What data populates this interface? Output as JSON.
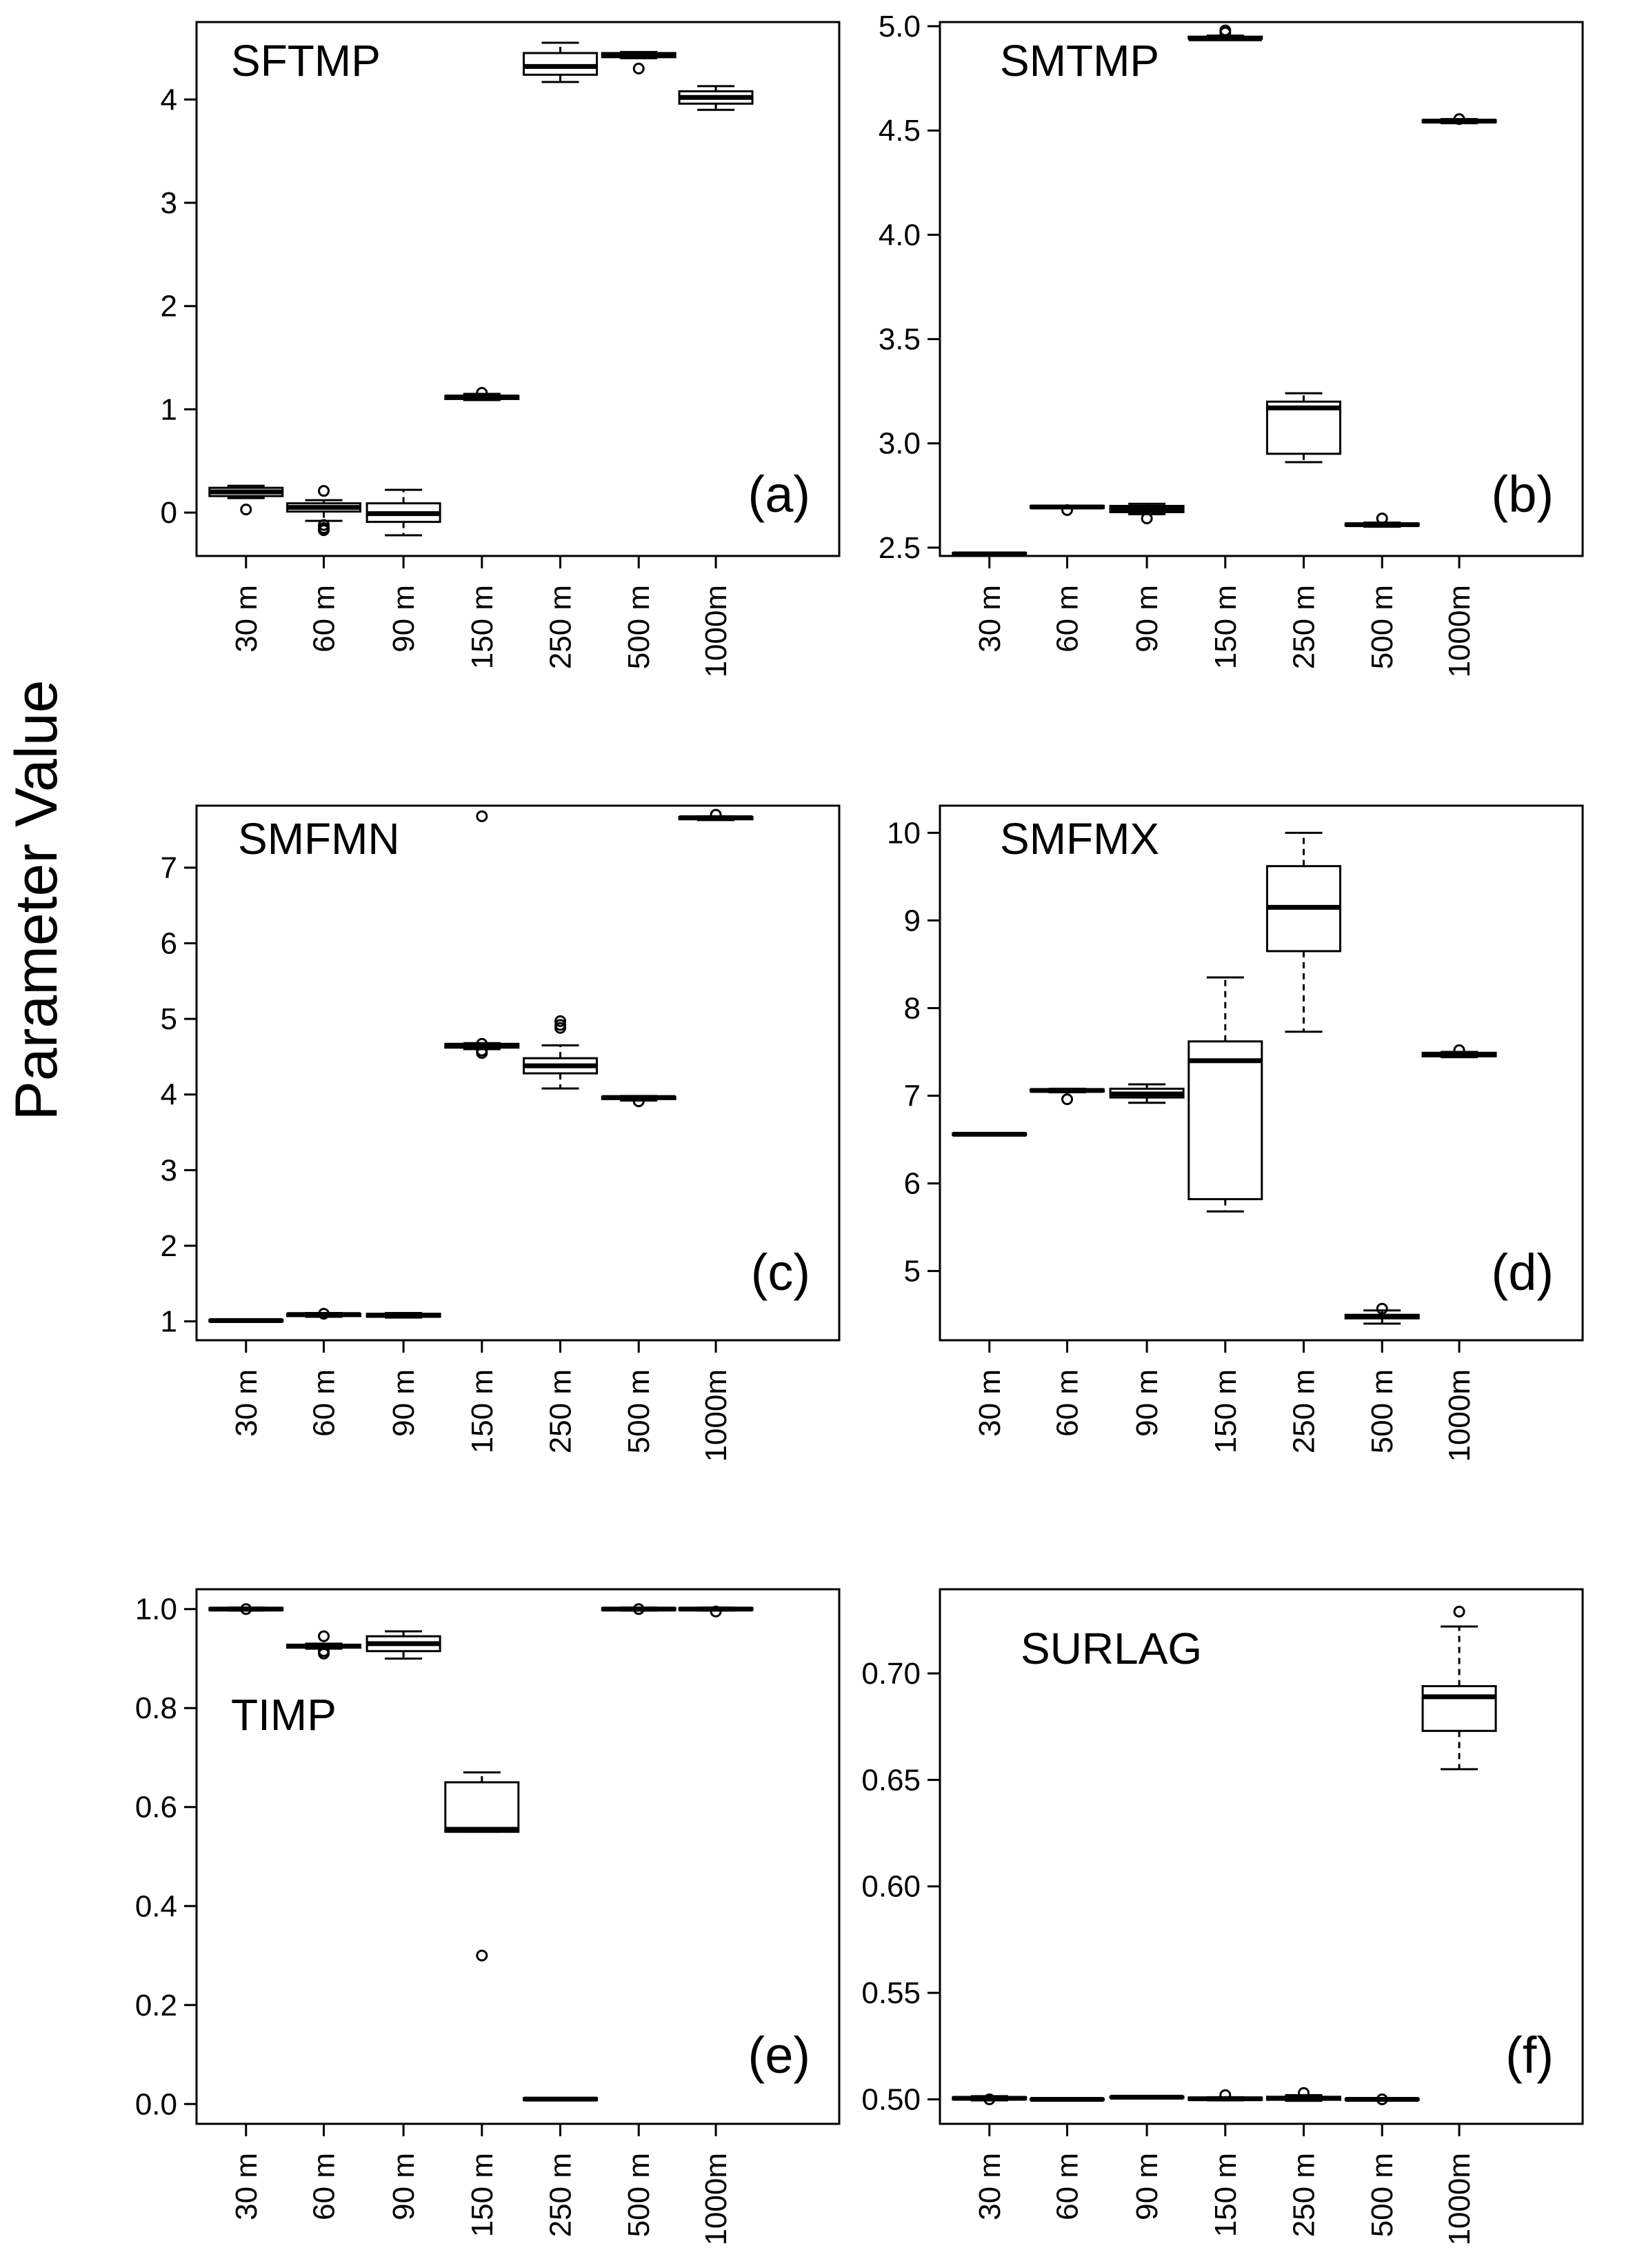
{
  "figure": {
    "ylabel": "Parameter Value"
  },
  "chart_data": [
    {
      "id": "a",
      "type": "box",
      "title": "SFTMP",
      "panel_label": "(a)",
      "categories": [
        "30 m",
        "60 m",
        "90 m",
        "150 m",
        "250 m",
        "500 m",
        "1000m"
      ],
      "ylim": [
        -0.42,
        4.75
      ],
      "yticks": [
        0,
        1,
        2,
        3,
        4
      ],
      "boxes": [
        {
          "q1": 0.16,
          "median": 0.2,
          "q3": 0.24,
          "lo": 0.14,
          "hi": 0.26,
          "outliers": [
            0.03
          ]
        },
        {
          "q1": 0.01,
          "median": 0.05,
          "q3": 0.09,
          "lo": -0.08,
          "hi": 0.12,
          "outliers": [
            0.21,
            -0.12,
            -0.15,
            -0.17
          ]
        },
        {
          "q1": -0.09,
          "median": -0.01,
          "q3": 0.09,
          "lo": -0.22,
          "hi": 0.22,
          "outliers": []
        },
        {
          "q1": 1.1,
          "median": 1.12,
          "q3": 1.13,
          "lo": 1.09,
          "hi": 1.15,
          "outliers": [
            1.16
          ]
        },
        {
          "q1": 4.24,
          "median": 4.32,
          "q3": 4.45,
          "lo": 4.17,
          "hi": 4.55,
          "outliers": []
        },
        {
          "q1": 4.41,
          "median": 4.43,
          "q3": 4.45,
          "lo": 4.4,
          "hi": 4.46,
          "outliers": [
            4.3
          ]
        },
        {
          "q1": 3.96,
          "median": 4.02,
          "q3": 4.08,
          "lo": 3.9,
          "hi": 4.13,
          "outliers": []
        }
      ]
    },
    {
      "id": "b",
      "type": "box",
      "title": "SMTMP",
      "panel_label": "(b)",
      "categories": [
        "30 m",
        "60 m",
        "90 m",
        "150 m",
        "250 m",
        "500 m",
        "1000m"
      ],
      "ylim": [
        2.46,
        5.02
      ],
      "yticks": [
        2.5,
        3.0,
        3.5,
        4.0,
        4.5,
        5.0
      ],
      "tick_labels": [
        "2.5",
        "3.0",
        "3.5",
        "4.0",
        "4.5",
        "5.0"
      ],
      "boxes": [
        {
          "q1": 2.465,
          "median": 2.47,
          "q3": 2.475,
          "lo": 2.465,
          "hi": 2.475,
          "outliers": []
        },
        {
          "q1": 2.69,
          "median": 2.695,
          "q3": 2.7,
          "lo": 2.69,
          "hi": 2.7,
          "outliers": [
            2.68
          ]
        },
        {
          "q1": 2.67,
          "median": 2.685,
          "q3": 2.7,
          "lo": 2.66,
          "hi": 2.71,
          "outliers": [
            2.64
          ]
        },
        {
          "q1": 4.94,
          "median": 4.94,
          "q3": 4.95,
          "lo": 4.935,
          "hi": 4.955,
          "outliers": [
            4.97,
            4.98
          ]
        },
        {
          "q1": 2.95,
          "median": 3.17,
          "q3": 3.2,
          "lo": 2.91,
          "hi": 3.24,
          "outliers": []
        },
        {
          "q1": 2.605,
          "median": 2.61,
          "q3": 2.615,
          "lo": 2.6,
          "hi": 2.62,
          "outliers": [
            2.64
          ]
        },
        {
          "q1": 4.54,
          "median": 4.545,
          "q3": 4.55,
          "lo": 4.535,
          "hi": 4.555,
          "outliers": [
            4.555
          ]
        }
      ]
    },
    {
      "id": "c",
      "type": "box",
      "title": "SMFMN",
      "panel_label": "(c)",
      "categories": [
        "30 m",
        "60 m",
        "90 m",
        "150 m",
        "250 m",
        "500 m",
        "1000m"
      ],
      "ylim": [
        0.75,
        7.82
      ],
      "yticks": [
        1,
        2,
        3,
        4,
        5,
        6,
        7
      ],
      "boxes": [
        {
          "q1": 1.0,
          "median": 1.01,
          "q3": 1.02,
          "lo": 1.0,
          "hi": 1.02,
          "outliers": []
        },
        {
          "q1": 1.07,
          "median": 1.09,
          "q3": 1.1,
          "lo": 1.06,
          "hi": 1.11,
          "outliers": [
            1.1
          ]
        },
        {
          "q1": 1.06,
          "median": 1.08,
          "q3": 1.1,
          "lo": 1.05,
          "hi": 1.11,
          "outliers": []
        },
        {
          "q1": 4.62,
          "median": 4.65,
          "q3": 4.67,
          "lo": 4.6,
          "hi": 4.68,
          "outliers": [
            7.68,
            4.55,
            4.58,
            4.67
          ]
        },
        {
          "q1": 4.28,
          "median": 4.38,
          "q3": 4.48,
          "lo": 4.08,
          "hi": 4.65,
          "outliers": [
            4.88,
            4.92,
            4.97
          ]
        },
        {
          "q1": 3.94,
          "median": 3.96,
          "q3": 3.97,
          "lo": 3.92,
          "hi": 3.98,
          "outliers": [
            3.91
          ]
        },
        {
          "q1": 7.64,
          "median": 7.66,
          "q3": 7.67,
          "lo": 7.63,
          "hi": 7.68,
          "outliers": [
            7.7
          ]
        }
      ]
    },
    {
      "id": "d",
      "type": "box",
      "title": "SMFMX",
      "panel_label": "(d)",
      "categories": [
        "30 m",
        "60 m",
        "90 m",
        "150 m",
        "250 m",
        "500 m",
        "1000m"
      ],
      "ylim": [
        4.21,
        10.31
      ],
      "yticks": [
        5,
        6,
        7,
        8,
        9,
        10
      ],
      "boxes": [
        {
          "q1": 6.55,
          "median": 6.56,
          "q3": 6.57,
          "lo": 6.55,
          "hi": 6.57,
          "outliers": []
        },
        {
          "q1": 7.05,
          "median": 7.06,
          "q3": 7.07,
          "lo": 7.04,
          "hi": 7.08,
          "outliers": [
            6.96
          ]
        },
        {
          "q1": 6.98,
          "median": 7.02,
          "q3": 7.08,
          "lo": 6.92,
          "hi": 7.13,
          "outliers": []
        },
        {
          "q1": 5.82,
          "median": 7.4,
          "q3": 7.62,
          "lo": 5.68,
          "hi": 8.35,
          "outliers": []
        },
        {
          "q1": 8.65,
          "median": 9.15,
          "q3": 9.62,
          "lo": 7.73,
          "hi": 10.0,
          "outliers": []
        },
        {
          "q1": 4.46,
          "median": 4.48,
          "q3": 4.5,
          "lo": 4.4,
          "hi": 4.55,
          "outliers": [
            4.57
          ]
        },
        {
          "q1": 7.45,
          "median": 7.47,
          "q3": 7.49,
          "lo": 7.44,
          "hi": 7.5,
          "outliers": [
            7.52
          ]
        }
      ]
    },
    {
      "id": "e",
      "type": "box",
      "title": "TIMP",
      "panel_label": "(e)",
      "categories": [
        "30 m",
        "60 m",
        "90 m",
        "150 m",
        "250 m",
        "500 m",
        "1000m"
      ],
      "ylim": [
        -0.04,
        1.04
      ],
      "yticks": [
        0.0,
        0.2,
        0.4,
        0.6,
        0.8,
        1.0
      ],
      "tick_labels": [
        "0.0",
        "0.2",
        "0.4",
        "0.6",
        "0.8",
        "1.0"
      ],
      "boxes": [
        {
          "q1": 0.998,
          "median": 1.0,
          "q3": 1.002,
          "lo": 0.997,
          "hi": 1.003,
          "outliers": [
            1.0
          ]
        },
        {
          "q1": 0.922,
          "median": 0.925,
          "q3": 0.928,
          "lo": 0.92,
          "hi": 0.93,
          "outliers": [
            0.945,
            0.915,
            0.91
          ]
        },
        {
          "q1": 0.915,
          "median": 0.93,
          "q3": 0.945,
          "lo": 0.9,
          "hi": 0.955,
          "outliers": []
        },
        {
          "q1": 0.55,
          "median": 0.555,
          "q3": 0.65,
          "lo": 0.55,
          "hi": 0.67,
          "outliers": [
            0.3
          ]
        },
        {
          "q1": 0.008,
          "median": 0.01,
          "q3": 0.012,
          "lo": 0.008,
          "hi": 0.012,
          "outliers": []
        },
        {
          "q1": 0.998,
          "median": 1.0,
          "q3": 1.002,
          "lo": 0.997,
          "hi": 1.003,
          "outliers": [
            1.0
          ]
        },
        {
          "q1": 0.998,
          "median": 1.0,
          "q3": 1.002,
          "lo": 0.997,
          "hi": 1.003,
          "outliers": [
            0.995
          ]
        }
      ]
    },
    {
      "id": "f",
      "type": "box",
      "title": "SURLAG",
      "panel_label": "(f)",
      "categories": [
        "30 m",
        "60 m",
        "90 m",
        "150 m",
        "250 m",
        "500 m",
        "1000m"
      ],
      "ylim": [
        0.4885,
        0.7395
      ],
      "yticks": [
        0.5,
        0.55,
        0.6,
        0.65,
        0.7
      ],
      "tick_labels": [
        "0.50",
        "0.55",
        "0.60",
        "0.65",
        "0.70"
      ],
      "boxes": [
        {
          "q1": 0.5,
          "median": 0.5005,
          "q3": 0.501,
          "lo": 0.4995,
          "hi": 0.5015,
          "outliers": [
            0.5
          ]
        },
        {
          "q1": 0.4998,
          "median": 0.5,
          "q3": 0.5002,
          "lo": 0.4997,
          "hi": 0.5003,
          "outliers": []
        },
        {
          "q1": 0.5008,
          "median": 0.501,
          "q3": 0.5012,
          "lo": 0.5005,
          "hi": 0.5015,
          "outliers": []
        },
        {
          "q1": 0.4998,
          "median": 0.5003,
          "q3": 0.5008,
          "lo": 0.4995,
          "hi": 0.501,
          "outliers": [
            0.502
          ]
        },
        {
          "q1": 0.4998,
          "median": 0.5005,
          "q3": 0.5012,
          "lo": 0.4993,
          "hi": 0.502,
          "outliers": [
            0.503
          ]
        },
        {
          "q1": 0.4998,
          "median": 0.5,
          "q3": 0.5002,
          "lo": 0.4995,
          "hi": 0.5005,
          "outliers": [
            0.5
          ]
        },
        {
          "q1": 0.673,
          "median": 0.689,
          "q3": 0.694,
          "lo": 0.655,
          "hi": 0.722,
          "outliers": [
            0.729
          ]
        }
      ]
    }
  ]
}
